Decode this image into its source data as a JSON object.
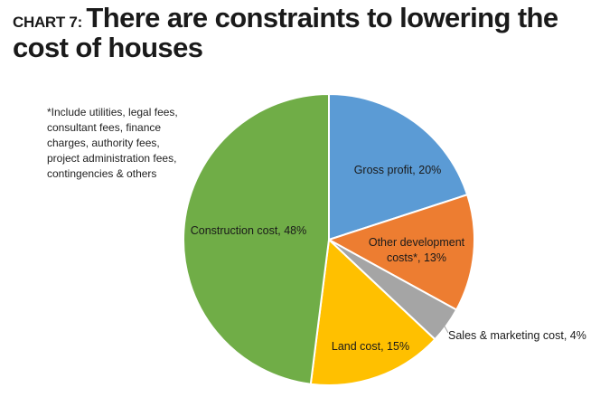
{
  "header": {
    "chart_label": "CHART 7:",
    "title": "There are constraints to lowering the cost of houses"
  },
  "footnote": "*Include utilities, legal fees, consultant fees, finance charges, authority fees, project administration fees, contingencies & others",
  "chart_data": {
    "type": "pie",
    "title": "There are constraints to lowering the cost of houses",
    "slices": [
      {
        "name": "Gross profit",
        "value": 20,
        "label_lines": [
          "Gross profit, 20%"
        ],
        "color": "#5B9BD5"
      },
      {
        "name": "Other development costs*",
        "value": 13,
        "label_lines": [
          "Other development",
          "costs*, 13%"
        ],
        "color": "#ED7D31"
      },
      {
        "name": "Sales & marketing cost",
        "value": 4,
        "label_lines": [
          "Sales & marketing cost, 4%"
        ],
        "color": "#A5A5A5"
      },
      {
        "name": "Land cost",
        "value": 15,
        "label_lines": [
          "Land cost, 15%"
        ],
        "color": "#FFC000"
      },
      {
        "name": "Construction cost",
        "value": 48,
        "label_lines": [
          "Construction cost, 48%"
        ],
        "color": "#70AD47"
      }
    ]
  }
}
